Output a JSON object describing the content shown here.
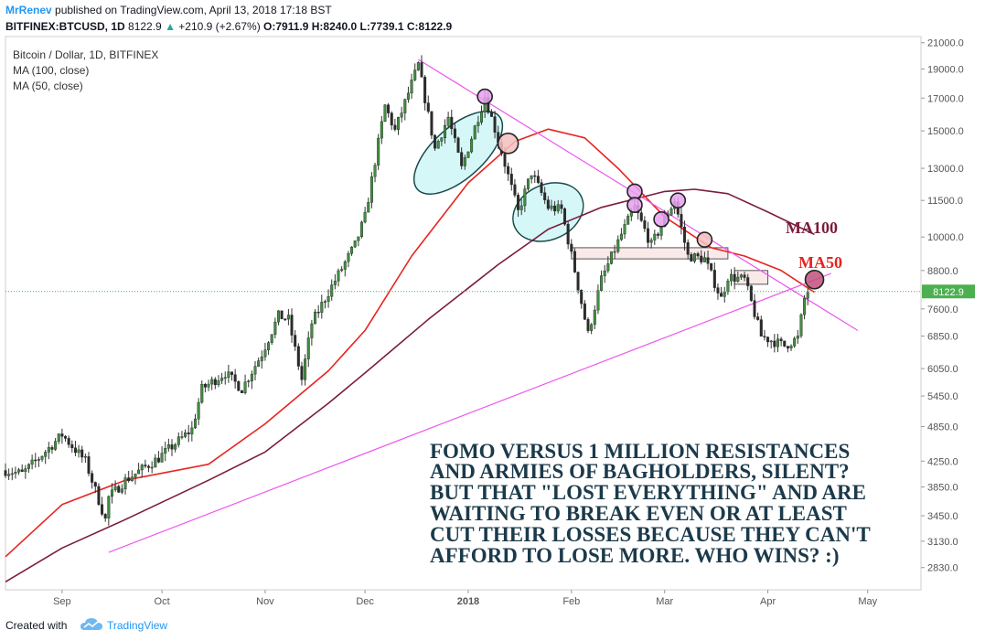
{
  "header": {
    "author": "MrRenev",
    "published": " published on TradingView.com, April 13, 2018 17:18 BST",
    "symbol": "BITFINEX:BTCUSD, 1D",
    "price": "8122.9",
    "change": "+210.9 (+2.67%)",
    "open": "O:7911.9",
    "high": "H:8240.0",
    "low": "L:7739.1",
    "close": "C:8122.9"
  },
  "legend": {
    "title": "Bitcoin / Dollar, 1D, BITFINEX",
    "ma100": "MA (100, close)",
    "ma50": "MA (50, close)"
  },
  "annotations": {
    "ma100_label": "MA100",
    "ma50_label": "MA50",
    "note_lines": [
      "FOMO VERSUS 1 MILLION RESISTANCES",
      "AND ARMIES OF BAGHOLDERS, SILENT?",
      "BUT THAT \"LOST EVERYTHING\" AND ARE",
      "WAITING TO BREAK EVEN OR AT LEAST",
      "CUT THEIR LOSSES BECAUSE THEY CAN'T",
      "AFFORD TO LOSE MORE. WHO WINS? :)"
    ]
  },
  "footer": {
    "created_with": "Created with",
    "brand": "TradingView"
  },
  "colors": {
    "up": "#26a69a",
    "down": "#ef5350",
    "candle_body": "#3f8f3f",
    "ma50": "#e8231f",
    "ma100": "#7b1c3c",
    "trendline": "#ee55ee",
    "price_tag": "#4caf50",
    "accent": "#2196f3"
  },
  "chart_data": {
    "type": "candlestick",
    "title": "Bitcoin / Dollar, 1D, BITFINEX",
    "y_axis_ticks": [
      2830,
      3130,
      3450,
      3850,
      4250,
      4850,
      5450,
      6050,
      6850,
      7600,
      8800,
      10000,
      11500,
      13000,
      15000,
      17000,
      19000,
      21000
    ],
    "y_axis_labels": [
      "2830.0",
      "3130.0",
      "3450.0",
      "3850.0",
      "4250.0",
      "4850.0",
      "5450.0",
      "6050.0",
      "6850.0",
      "7600.0",
      "8800.0",
      "10000.0",
      "11500.0",
      "13000.0",
      "15000.0",
      "17000.0",
      "19000.0",
      "21000.0"
    ],
    "y_scale": "log",
    "ylim": [
      2600,
      21500
    ],
    "x_axis_labels": [
      "Sep",
      "Oct",
      "Nov",
      "Dec",
      "2018",
      "Feb",
      "Mar",
      "Apr",
      "May"
    ],
    "x_axis_dates": [
      "2017-09-01",
      "2017-10-01",
      "2017-11-01",
      "2017-12-01",
      "2018-01-01",
      "2018-02-01",
      "2018-03-01",
      "2018-04-01",
      "2018-05-01"
    ],
    "last_price": 8122.9,
    "price_keypoints": [
      [
        "2017-08-15",
        4100
      ],
      [
        "2017-08-20",
        4050
      ],
      [
        "2017-08-25",
        4300
      ],
      [
        "2017-09-01",
        4700
      ],
      [
        "2017-09-08",
        4250
      ],
      [
        "2017-09-14",
        3400
      ],
      [
        "2017-09-15",
        3700
      ],
      [
        "2017-09-20",
        3950
      ],
      [
        "2017-09-30",
        4300
      ],
      [
        "2017-10-10",
        4800
      ],
      [
        "2017-10-13",
        5600
      ],
      [
        "2017-10-20",
        5950
      ],
      [
        "2017-10-25",
        5600
      ],
      [
        "2017-10-31",
        6400
      ],
      [
        "2017-11-05",
        7400
      ],
      [
        "2017-11-08",
        7300
      ],
      [
        "2017-11-12",
        5800
      ],
      [
        "2017-11-15",
        7200
      ],
      [
        "2017-11-20",
        8100
      ],
      [
        "2017-11-28",
        9700
      ],
      [
        "2017-12-01",
        10800
      ],
      [
        "2017-12-07",
        16500
      ],
      [
        "2017-12-10",
        15000
      ],
      [
        "2017-12-17",
        19300
      ],
      [
        "2017-12-22",
        14000
      ],
      [
        "2017-12-26",
        15800
      ],
      [
        "2017-12-30",
        13000
      ],
      [
        "2018-01-06",
        17100
      ],
      [
        "2018-01-10",
        14500
      ],
      [
        "2018-01-16",
        11000
      ],
      [
        "2018-01-20",
        12800
      ],
      [
        "2018-01-25",
        11200
      ],
      [
        "2018-01-29",
        11100
      ],
      [
        "2018-02-02",
        8800
      ],
      [
        "2018-02-06",
        6900
      ],
      [
        "2018-02-10",
        8500
      ],
      [
        "2018-02-16",
        10100
      ],
      [
        "2018-02-20",
        11200
      ],
      [
        "2018-02-25",
        9700
      ],
      [
        "2018-03-04",
        11500
      ],
      [
        "2018-03-08",
        9300
      ],
      [
        "2018-03-13",
        9200
      ],
      [
        "2018-03-18",
        7900
      ],
      [
        "2018-03-20",
        8600
      ],
      [
        "2018-03-25",
        8500
      ],
      [
        "2018-03-30",
        6850
      ],
      [
        "2018-04-06",
        6600
      ],
      [
        "2018-04-10",
        6800
      ],
      [
        "2018-04-12",
        7900
      ],
      [
        "2018-04-13",
        8122.9
      ]
    ],
    "series": [
      {
        "name": "MA (50, close)",
        "points": [
          [
            "2017-08-15",
            2950
          ],
          [
            "2017-09-01",
            3600
          ],
          [
            "2017-09-20",
            3950
          ],
          [
            "2017-10-15",
            4200
          ],
          [
            "2017-11-01",
            4900
          ],
          [
            "2017-11-20",
            6000
          ],
          [
            "2017-12-01",
            7000
          ],
          [
            "2017-12-15",
            9300
          ],
          [
            "2018-01-01",
            12300
          ],
          [
            "2018-01-15",
            14400
          ],
          [
            "2018-01-25",
            15100
          ],
          [
            "2018-02-05",
            14600
          ],
          [
            "2018-02-15",
            13000
          ],
          [
            "2018-03-01",
            10800
          ],
          [
            "2018-03-15",
            9600
          ],
          [
            "2018-03-25",
            9300
          ],
          [
            "2018-04-05",
            8800
          ],
          [
            "2018-04-15",
            8100
          ]
        ]
      },
      {
        "name": "MA (100, close)",
        "points": [
          [
            "2017-08-15",
            2680
          ],
          [
            "2017-09-01",
            3050
          ],
          [
            "2017-09-20",
            3400
          ],
          [
            "2017-10-15",
            3950
          ],
          [
            "2017-11-01",
            4400
          ],
          [
            "2017-11-20",
            5300
          ],
          [
            "2017-12-01",
            5950
          ],
          [
            "2017-12-20",
            7300
          ],
          [
            "2018-01-10",
            9000
          ],
          [
            "2018-01-25",
            10300
          ],
          [
            "2018-02-10",
            11200
          ],
          [
            "2018-03-01",
            11900
          ],
          [
            "2018-03-10",
            12000
          ],
          [
            "2018-03-20",
            11800
          ],
          [
            "2018-04-01",
            11000
          ],
          [
            "2018-04-15",
            10100
          ]
        ]
      }
    ],
    "trendlines": [
      {
        "from": [
          "2017-12-17",
          19700
        ],
        "to": [
          "2018-04-28",
          7000
        ]
      },
      {
        "from": [
          "2017-09-15",
          3000
        ],
        "to": [
          "2018-04-20",
          8700
        ]
      }
    ],
    "highlight_ellipses": [
      {
        "center": [
          "2017-12-29",
          13800
        ],
        "fill": "#c8f4f4"
      },
      {
        "center": [
          "2018-01-25",
          11000
        ],
        "fill": "#c8f4f4"
      }
    ],
    "markers": [
      {
        "at": [
          "2018-01-06",
          17100
        ],
        "fill": "#e8a0f0"
      },
      {
        "at": [
          "2018-01-13",
          14300
        ],
        "fill": "#f3c0bd"
      },
      {
        "at": [
          "2018-02-20",
          11900
        ],
        "fill": "#e8a0f0"
      },
      {
        "at": [
          "2018-02-20",
          11300
        ],
        "fill": "#e8a0f0"
      },
      {
        "at": [
          "2018-02-28",
          10700
        ],
        "fill": "#e8a0f0"
      },
      {
        "at": [
          "2018-03-05",
          11500
        ],
        "fill": "#e8a0f0"
      },
      {
        "at": [
          "2018-03-13",
          9900
        ],
        "fill": "#f3c0bd"
      },
      {
        "at": [
          "2018-04-15",
          8500
        ],
        "fill": "#c0507a"
      }
    ],
    "zones": [
      {
        "from": [
          "2018-02-01",
          9200
        ],
        "to": [
          "2018-03-20",
          9600
        ]
      },
      {
        "from": [
          "2018-03-22",
          8350
        ],
        "to": [
          "2018-04-01",
          8800
        ]
      }
    ]
  }
}
